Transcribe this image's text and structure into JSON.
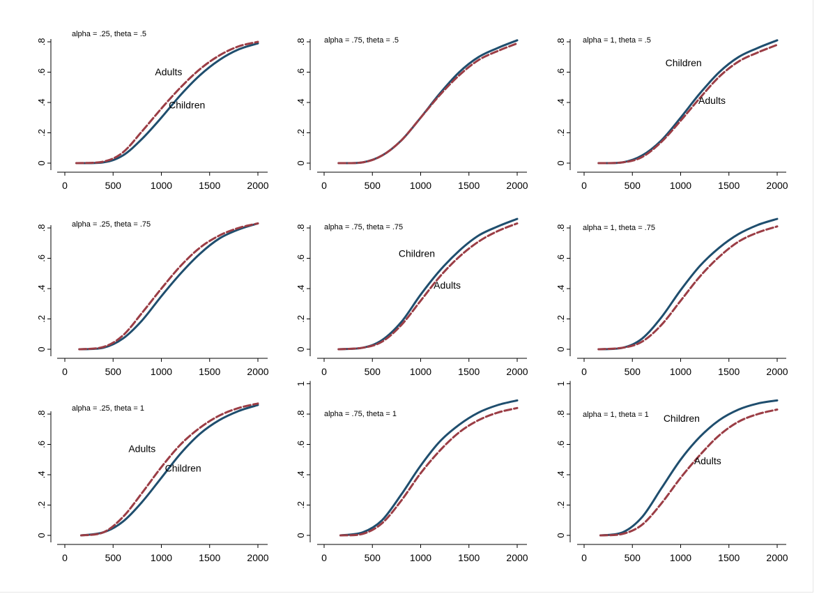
{
  "colors": {
    "children": "#1f4e6e",
    "adults": "#9b3d45"
  },
  "chart_data": [
    {
      "type": "line",
      "title": "alpha = .25, theta = .5",
      "xticks": [
        0,
        500,
        1000,
        1500,
        2000
      ],
      "yticks": [
        0,
        0.2,
        0.4,
        0.6,
        0.8
      ],
      "ytick_labels": [
        "0",
        ".2",
        ".4",
        ".6",
        ".8"
      ],
      "ylim": [
        0,
        0.8
      ],
      "series": [
        {
          "name": "Children",
          "label_at": [
            1265,
            0.36
          ],
          "points": [
            [
              120,
              0
            ],
            [
              400,
              0.005
            ],
            [
              600,
              0.05
            ],
            [
              800,
              0.16
            ],
            [
              1000,
              0.3
            ],
            [
              1200,
              0.45
            ],
            [
              1400,
              0.58
            ],
            [
              1600,
              0.68
            ],
            [
              1800,
              0.75
            ],
            [
              2000,
              0.79
            ]
          ]
        },
        {
          "name": "Adults",
          "label_at": [
            1075,
            0.58
          ],
          "points": [
            [
              120,
              0
            ],
            [
              400,
              0.01
            ],
            [
              600,
              0.07
            ],
            [
              800,
              0.21
            ],
            [
              1000,
              0.36
            ],
            [
              1200,
              0.5
            ],
            [
              1400,
              0.62
            ],
            [
              1600,
              0.71
            ],
            [
              1800,
              0.77
            ],
            [
              2000,
              0.8
            ]
          ]
        }
      ]
    },
    {
      "type": "line",
      "title": "alpha = .75, theta = .5",
      "xticks": [
        0,
        500,
        1000,
        1500,
        2000
      ],
      "yticks": [
        0,
        0.2,
        0.4,
        0.6,
        0.8
      ],
      "ytick_labels": [
        "0",
        ".2",
        ".4",
        ".6",
        ".8"
      ],
      "ylim": [
        0,
        0.8
      ],
      "series": [
        {
          "name": "",
          "points": [
            [
              150,
              0
            ],
            [
              400,
              0.005
            ],
            [
              600,
              0.05
            ],
            [
              800,
              0.15
            ],
            [
              1000,
              0.3
            ],
            [
              1200,
              0.46
            ],
            [
              1400,
              0.6
            ],
            [
              1600,
              0.7
            ],
            [
              1800,
              0.76
            ],
            [
              2000,
              0.81
            ]
          ]
        },
        {
          "name": "",
          "points": [
            [
              150,
              0
            ],
            [
              400,
              0.005
            ],
            [
              600,
              0.05
            ],
            [
              800,
              0.15
            ],
            [
              1000,
              0.3
            ],
            [
              1200,
              0.45
            ],
            [
              1400,
              0.58
            ],
            [
              1600,
              0.68
            ],
            [
              1800,
              0.74
            ],
            [
              2000,
              0.79
            ]
          ]
        }
      ]
    },
    {
      "type": "line",
      "title": "alpha = 1, theta = .5",
      "xticks": [
        0,
        500,
        1000,
        1500,
        2000
      ],
      "yticks": [
        0,
        0.2,
        0.4,
        0.6,
        0.8
      ],
      "ytick_labels": [
        "0",
        ".2",
        ".4",
        ".6",
        ".8"
      ],
      "ylim": [
        0,
        0.8
      ],
      "series": [
        {
          "name": "Children",
          "label_at": [
            1030,
            0.64
          ],
          "points": [
            [
              150,
              0
            ],
            [
              400,
              0.005
            ],
            [
              600,
              0.05
            ],
            [
              800,
              0.15
            ],
            [
              1000,
              0.3
            ],
            [
              1200,
              0.46
            ],
            [
              1400,
              0.6
            ],
            [
              1600,
              0.7
            ],
            [
              1800,
              0.76
            ],
            [
              2000,
              0.81
            ]
          ]
        },
        {
          "name": "Adults",
          "label_at": [
            1325,
            0.39
          ],
          "points": [
            [
              150,
              0
            ],
            [
              400,
              0.005
            ],
            [
              600,
              0.04
            ],
            [
              800,
              0.14
            ],
            [
              1000,
              0.28
            ],
            [
              1200,
              0.43
            ],
            [
              1400,
              0.57
            ],
            [
              1600,
              0.67
            ],
            [
              1800,
              0.73
            ],
            [
              2000,
              0.78
            ]
          ]
        }
      ]
    },
    {
      "type": "line",
      "title": "alpha = .25, theta = .75",
      "xticks": [
        0,
        500,
        1000,
        1500,
        2000
      ],
      "yticks": [
        0,
        0.2,
        0.4,
        0.6,
        0.8
      ],
      "ytick_labels": [
        "0",
        ".2",
        ".4",
        ".6",
        ".8"
      ],
      "ylim": [
        0,
        0.8
      ],
      "series": [
        {
          "name": "",
          "points": [
            [
              150,
              0
            ],
            [
              400,
              0.01
            ],
            [
              600,
              0.07
            ],
            [
              800,
              0.19
            ],
            [
              1000,
              0.35
            ],
            [
              1200,
              0.5
            ],
            [
              1400,
              0.63
            ],
            [
              1600,
              0.73
            ],
            [
              1800,
              0.79
            ],
            [
              2000,
              0.83
            ]
          ]
        },
        {
          "name": "",
          "points": [
            [
              150,
              0
            ],
            [
              400,
              0.015
            ],
            [
              600,
              0.09
            ],
            [
              800,
              0.24
            ],
            [
              1000,
              0.4
            ],
            [
              1200,
              0.55
            ],
            [
              1400,
              0.67
            ],
            [
              1600,
              0.75
            ],
            [
              1800,
              0.8
            ],
            [
              2000,
              0.83
            ]
          ]
        }
      ]
    },
    {
      "type": "line",
      "title": "alpha = .75, theta = .75",
      "xticks": [
        0,
        500,
        1000,
        1500,
        2000
      ],
      "yticks": [
        0,
        0.2,
        0.4,
        0.6,
        0.8
      ],
      "ytick_labels": [
        "0",
        ".2",
        ".4",
        ".6",
        ".8"
      ],
      "ylim": [
        0,
        0.8
      ],
      "series": [
        {
          "name": "Children",
          "label_at": [
            960,
            0.61
          ],
          "points": [
            [
              150,
              0
            ],
            [
              400,
              0.01
            ],
            [
              600,
              0.06
            ],
            [
              800,
              0.18
            ],
            [
              1000,
              0.36
            ],
            [
              1200,
              0.52
            ],
            [
              1400,
              0.65
            ],
            [
              1600,
              0.75
            ],
            [
              1800,
              0.81
            ],
            [
              2000,
              0.86
            ]
          ]
        },
        {
          "name": "Adults",
          "label_at": [
            1275,
            0.4
          ],
          "points": [
            [
              150,
              0
            ],
            [
              400,
              0.01
            ],
            [
              600,
              0.05
            ],
            [
              800,
              0.16
            ],
            [
              1000,
              0.32
            ],
            [
              1200,
              0.48
            ],
            [
              1400,
              0.61
            ],
            [
              1600,
              0.71
            ],
            [
              1800,
              0.78
            ],
            [
              2000,
              0.83
            ]
          ]
        }
      ]
    },
    {
      "type": "line",
      "title": "alpha = 1, theta = .75",
      "xticks": [
        0,
        500,
        1000,
        1500,
        2000
      ],
      "yticks": [
        0,
        0.2,
        0.4,
        0.6,
        0.8
      ],
      "ytick_labels": [
        "0",
        ".2",
        ".4",
        ".6",
        ".8"
      ],
      "ylim": [
        0,
        0.8
      ],
      "series": [
        {
          "name": "",
          "points": [
            [
              150,
              0
            ],
            [
              400,
              0.01
            ],
            [
              600,
              0.07
            ],
            [
              800,
              0.21
            ],
            [
              1000,
              0.39
            ],
            [
              1200,
              0.55
            ],
            [
              1400,
              0.67
            ],
            [
              1600,
              0.76
            ],
            [
              1800,
              0.82
            ],
            [
              2000,
              0.86
            ]
          ]
        },
        {
          "name": "",
          "points": [
            [
              150,
              0
            ],
            [
              400,
              0.01
            ],
            [
              600,
              0.05
            ],
            [
              800,
              0.16
            ],
            [
              1000,
              0.32
            ],
            [
              1200,
              0.48
            ],
            [
              1400,
              0.61
            ],
            [
              1600,
              0.71
            ],
            [
              1800,
              0.77
            ],
            [
              2000,
              0.81
            ]
          ]
        }
      ]
    },
    {
      "type": "line",
      "title": "alpha = .25, theta = 1",
      "xticks": [
        0,
        500,
        1000,
        1500,
        2000
      ],
      "yticks": [
        0,
        0.2,
        0.4,
        0.6,
        0.8
      ],
      "ytick_labels": [
        "0",
        ".2",
        ".4",
        ".6",
        ".8"
      ],
      "ylim": [
        0,
        0.8
      ],
      "series": [
        {
          "name": "Children",
          "label_at": [
            1225,
            0.42
          ],
          "points": [
            [
              170,
              0
            ],
            [
              400,
              0.02
            ],
            [
              600,
              0.09
            ],
            [
              800,
              0.22
            ],
            [
              1000,
              0.38
            ],
            [
              1200,
              0.54
            ],
            [
              1400,
              0.67
            ],
            [
              1600,
              0.76
            ],
            [
              1800,
              0.82
            ],
            [
              2000,
              0.86
            ]
          ]
        },
        {
          "name": "Adults",
          "label_at": [
            800,
            0.55
          ],
          "points": [
            [
              170,
              0
            ],
            [
              400,
              0.02
            ],
            [
              600,
              0.12
            ],
            [
              800,
              0.28
            ],
            [
              1000,
              0.45
            ],
            [
              1200,
              0.6
            ],
            [
              1400,
              0.71
            ],
            [
              1600,
              0.79
            ],
            [
              1800,
              0.84
            ],
            [
              2000,
              0.87
            ]
          ]
        }
      ]
    },
    {
      "type": "line",
      "title": "alpha = .75, theta = 1",
      "xticks": [
        0,
        500,
        1000,
        1500,
        2000
      ],
      "yticks": [
        0,
        0.2,
        0.4,
        0.6,
        0.8,
        1.0
      ],
      "ytick_labels": [
        "0",
        ".2",
        ".4",
        ".6",
        ".8",
        "1"
      ],
      "ylim": [
        0,
        1
      ],
      "series": [
        {
          "name": "",
          "points": [
            [
              170,
              0
            ],
            [
              400,
              0.02
            ],
            [
              600,
              0.1
            ],
            [
              800,
              0.27
            ],
            [
              1000,
              0.46
            ],
            [
              1200,
              0.62
            ],
            [
              1400,
              0.73
            ],
            [
              1600,
              0.81
            ],
            [
              1800,
              0.86
            ],
            [
              2000,
              0.89
            ]
          ]
        },
        {
          "name": "",
          "points": [
            [
              170,
              0
            ],
            [
              400,
              0.01
            ],
            [
              600,
              0.08
            ],
            [
              800,
              0.23
            ],
            [
              1000,
              0.41
            ],
            [
              1200,
              0.56
            ],
            [
              1400,
              0.68
            ],
            [
              1600,
              0.76
            ],
            [
              1800,
              0.81
            ],
            [
              2000,
              0.84
            ]
          ]
        }
      ]
    },
    {
      "type": "line",
      "title": "alpha = 1, theta = 1",
      "xticks": [
        0,
        500,
        1000,
        1500,
        2000
      ],
      "yticks": [
        0,
        0.2,
        0.4,
        0.6,
        0.8,
        1.0
      ],
      "ytick_labels": [
        "0",
        ".2",
        ".4",
        ".6",
        ".8",
        "1"
      ],
      "ylim": [
        0,
        1
      ],
      "series": [
        {
          "name": "Children",
          "label_at": [
            1010,
            0.75
          ],
          "points": [
            [
              170,
              0
            ],
            [
              400,
              0.02
            ],
            [
              600,
              0.12
            ],
            [
              800,
              0.31
            ],
            [
              1000,
              0.5
            ],
            [
              1200,
              0.65
            ],
            [
              1400,
              0.76
            ],
            [
              1600,
              0.83
            ],
            [
              1800,
              0.87
            ],
            [
              2000,
              0.89
            ]
          ]
        },
        {
          "name": "Adults",
          "label_at": [
            1280,
            0.47
          ],
          "points": [
            [
              170,
              0
            ],
            [
              400,
              0.01
            ],
            [
              600,
              0.07
            ],
            [
              800,
              0.21
            ],
            [
              1000,
              0.38
            ],
            [
              1200,
              0.53
            ],
            [
              1400,
              0.66
            ],
            [
              1600,
              0.75
            ],
            [
              1800,
              0.8
            ],
            [
              2000,
              0.83
            ]
          ]
        }
      ]
    }
  ]
}
